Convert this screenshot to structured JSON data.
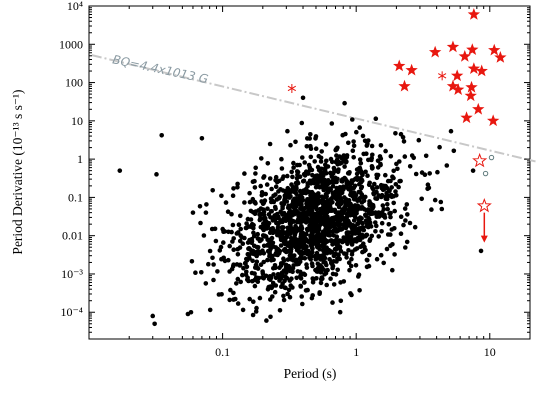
{
  "chart_data": {
    "type": "scatter",
    "title": "",
    "xlabel": "Period (s)",
    "ylabel": "Period Derivative (10⁻¹³ s s⁻¹)",
    "xscale": "log",
    "yscale": "log",
    "xlim": [
      0.01,
      20
    ],
    "ylim": [
      2e-05,
      10000
    ],
    "grid": false,
    "x_ticks": [
      {
        "value": 0.1,
        "label": "0.1"
      },
      {
        "value": 1,
        "label": "1"
      },
      {
        "value": 10,
        "label": "10"
      }
    ],
    "y_ticks": [
      {
        "value": 0.0001,
        "label": "10⁻⁴"
      },
      {
        "value": 0.001,
        "label": "10⁻³"
      },
      {
        "value": 0.01,
        "label": "0.01"
      },
      {
        "value": 0.1,
        "label": "0.1"
      },
      {
        "value": 1,
        "label": "1"
      },
      {
        "value": 10,
        "label": "10"
      },
      {
        "value": 100,
        "label": "100"
      },
      {
        "value": 1000,
        "label": "1000"
      },
      {
        "value": 10000,
        "label": "10⁴"
      }
    ],
    "colors": {
      "pulsars": "#000000",
      "magnetars": "#e8170f",
      "bq_line": "#c8c8c8",
      "bq_text": "#8a9aa2",
      "open_circles": "#5f7b7d"
    },
    "bq_line": {
      "label": "BQ=4.4x1013 G",
      "points": [
        [
          0.0105,
          520
        ],
        [
          22,
          0.87
        ]
      ]
    },
    "pulsar_cloud": {
      "count": 1750,
      "center_log_period": -0.3,
      "center_log_pdot": -1.6
    },
    "pulsars_outliers": [
      [
        0.017,
        0.5
      ],
      [
        0.03,
        8e-05
      ],
      [
        0.031,
        5e-05
      ],
      [
        0.032,
        0.4
      ],
      [
        0.035,
        4.2
      ],
      [
        0.055,
        9e-05
      ],
      [
        0.058,
        0.0001
      ],
      [
        0.06,
        0.04
      ],
      [
        0.07,
        3.5
      ],
      [
        0.075,
        0.04
      ],
      [
        0.4,
        40
      ],
      [
        0.45,
        0.6
      ],
      [
        7.5,
        0.5
      ],
      [
        8.6,
        0.004
      ]
    ],
    "magnetars_filled": [
      [
        7.6,
        6000
      ],
      [
        10.8,
        700
      ],
      [
        7.4,
        720
      ],
      [
        5.3,
        850
      ],
      [
        12,
        450
      ],
      [
        3.9,
        620
      ],
      [
        6.5,
        480
      ],
      [
        2.1,
        270
      ],
      [
        2.6,
        210
      ],
      [
        7.6,
        230
      ],
      [
        8.7,
        200
      ],
      [
        5.7,
        150
      ],
      [
        5.3,
        80
      ],
      [
        5.8,
        65
      ],
      [
        7.3,
        75
      ],
      [
        2.3,
        80
      ],
      [
        7.2,
        45
      ],
      [
        6.7,
        12
      ],
      [
        8.2,
        20
      ],
      [
        10.6,
        10
      ]
    ],
    "magnetars_asterisk": [
      [
        0.33,
        70
      ],
      [
        4.4,
        150
      ]
    ],
    "magnetars_open_star": [
      [
        8.4,
        0.9
      ],
      [
        9.1,
        0.06
      ]
    ],
    "open_circles": [
      [
        9.3,
        0.42
      ],
      [
        10.3,
        1.1
      ]
    ],
    "upper_limit_arrow": {
      "x": 9.1,
      "from": 0.04,
      "to": 0.007
    }
  }
}
